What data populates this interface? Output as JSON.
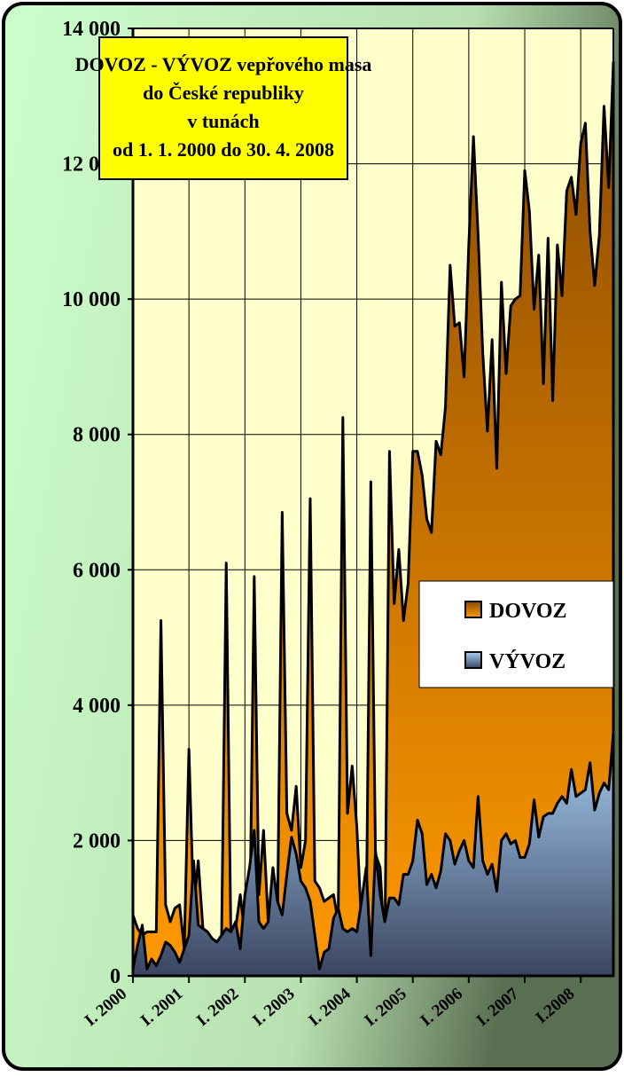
{
  "chart_data": {
    "type": "area",
    "title_lines": [
      "DOVOZ - VÝVOZ vepřového masa",
      "do České republiky",
      "v tunách",
      "od 1. 1. 2000 do 30. 4. 2008"
    ],
    "categories": [
      "I. 2000",
      null,
      null,
      null,
      null,
      null,
      null,
      null,
      null,
      null,
      null,
      null,
      "I. 2001",
      null,
      null,
      null,
      null,
      null,
      null,
      null,
      null,
      null,
      null,
      null,
      "I. 2002",
      null,
      null,
      null,
      null,
      null,
      null,
      null,
      null,
      null,
      null,
      null,
      "I. 2003",
      null,
      null,
      null,
      null,
      null,
      null,
      null,
      null,
      null,
      null,
      null,
      "I. 2004",
      null,
      null,
      null,
      null,
      null,
      null,
      null,
      null,
      null,
      null,
      null,
      "I. 2005",
      null,
      null,
      null,
      null,
      null,
      null,
      null,
      null,
      null,
      null,
      null,
      "I. 2006",
      null,
      null,
      null,
      null,
      null,
      null,
      null,
      null,
      null,
      null,
      null,
      "I. 2007",
      null,
      null,
      null,
      null,
      null,
      null,
      null,
      null,
      null,
      null,
      null,
      "I.2008",
      null,
      null,
      null,
      null,
      null,
      null,
      null
    ],
    "series": [
      {
        "name": "DOVOZ",
        "color": "#ff9900",
        "gradient": [
          "#8b4a00",
          "#ff9900"
        ],
        "values": [
          900,
          700,
          600,
          650,
          650,
          650,
          5250,
          1050,
          800,
          1000,
          1050,
          400,
          3350,
          1000,
          1700,
          700,
          600,
          550,
          500,
          550,
          6100,
          550,
          700,
          1200,
          600,
          450,
          5900,
          1200,
          2150,
          800,
          700,
          900,
          6850,
          2400,
          2150,
          2800,
          1600,
          2000,
          7050,
          1400,
          1300,
          1100,
          1150,
          1200,
          800,
          8250,
          2400,
          3100,
          2200,
          750,
          700,
          7300,
          1800,
          1600,
          350,
          7750,
          5500,
          6300,
          5250,
          5800,
          7750,
          7750,
          7400,
          6750,
          6550,
          7900,
          7700,
          8400,
          10500,
          9600,
          9650,
          8850,
          10800,
          12400,
          10950,
          9200,
          8050,
          9400,
          7500,
          10250,
          8900,
          9900,
          10000,
          10050,
          11900,
          11300,
          9850,
          10650,
          8750,
          10900,
          8500,
          10800,
          10050,
          11600,
          11800,
          11250,
          12300,
          12600,
          11000,
          10200,
          10950,
          12850,
          11650,
          13500
        ]
      },
      {
        "name": "VÝVOZ",
        "color": "#a8d0f5",
        "gradient": [
          "#a8d0f5",
          "#3a4560"
        ],
        "values": [
          100,
          450,
          750,
          100,
          250,
          150,
          300,
          500,
          450,
          350,
          200,
          400,
          600,
          1700,
          750,
          700,
          650,
          550,
          500,
          600,
          700,
          650,
          800,
          400,
          1200,
          1600,
          2150,
          800,
          700,
          800,
          1600,
          1100,
          900,
          1500,
          2050,
          1800,
          1400,
          1300,
          1100,
          600,
          100,
          350,
          400,
          850,
          1000,
          700,
          650,
          700,
          650,
          1100,
          1600,
          300,
          1850,
          1200,
          800,
          1150,
          1150,
          1050,
          1500,
          1500,
          1700,
          2300,
          2100,
          1350,
          1500,
          1300,
          1550,
          2100,
          2000,
          1650,
          1850,
          2000,
          1700,
          1600,
          2650,
          1700,
          1500,
          1650,
          1250,
          2000,
          2100,
          1950,
          2000,
          1750,
          1750,
          1950,
          2600,
          2050,
          2350,
          2400,
          2400,
          2550,
          2650,
          2550,
          3050,
          2650,
          2700,
          2750,
          3150,
          2450,
          2700,
          2850,
          2750,
          3600
        ]
      }
    ],
    "ylim": [
      0,
      14000
    ],
    "yticks": [
      0,
      {
        "value": 2000,
        "label": "2 000"
      },
      {
        "value": 4000,
        "label": "4 000"
      },
      {
        "value": 6000,
        "label": "6 000"
      },
      {
        "value": 8000,
        "label": "8 000"
      },
      {
        "value": 10000,
        "label": "10 000"
      },
      {
        "value": 12000,
        "label": "12 000"
      },
      {
        "value": 14000,
        "label": "14 000"
      }
    ],
    "grid": true,
    "legend": "right"
  }
}
